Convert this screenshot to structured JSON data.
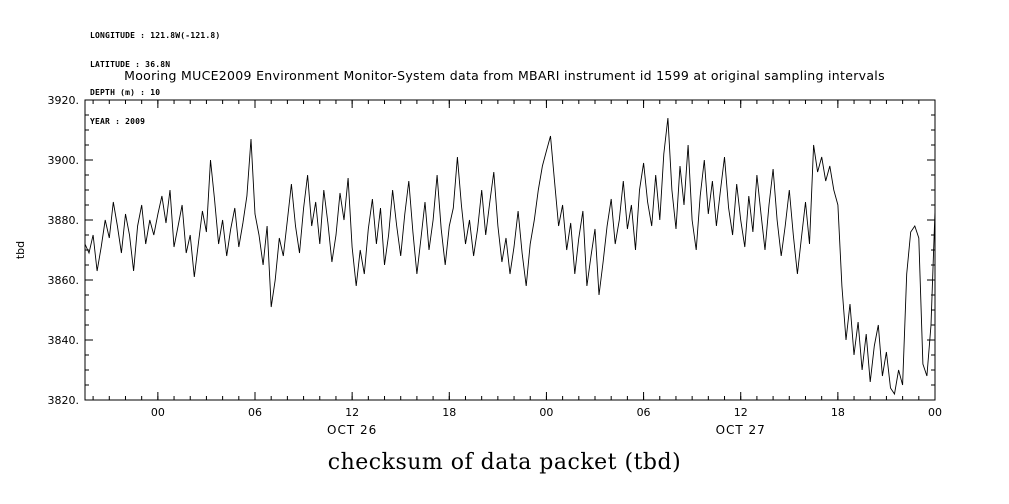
{
  "meta": {
    "lines": [
      "LONGITUDE : 121.8W(-121.8)",
      "LATITUDE : 36.8N",
      "DEPTH (m) : 10",
      "YEAR : 2009"
    ]
  },
  "title": "Mooring MUCE2009 Environment Monitor-System data from MBARI instrument id 1599 at original sampling intervals",
  "caption": "checksum of data packet (tbd)",
  "colors": {
    "foreground": "#000000",
    "background": "#ffffff"
  },
  "chart_data": {
    "type": "line",
    "title": "Mooring MUCE2009 Environment Monitor-System data from MBARI instrument id 1599 at original sampling intervals",
    "xlabel": "",
    "ylabel": "tbd",
    "legend": "none",
    "grid": false,
    "color": "#000000",
    "ylim": [
      3820,
      3920
    ],
    "xlim": [
      -4.5,
      48
    ],
    "ytick_values": [
      3820,
      3840,
      3860,
      3880,
      3900,
      3920
    ],
    "ytick_labels": [
      "3820.",
      "3840.",
      "3860.",
      "3880.",
      "3900.",
      "3920."
    ],
    "y_minor_step": 5,
    "xtick_values": [
      0,
      6,
      12,
      18,
      24,
      30,
      36,
      42,
      48
    ],
    "xtick_labels": [
      "00",
      "06",
      "12",
      "18",
      "00",
      "06",
      "12",
      "18",
      "00"
    ],
    "x_minor_step": 1,
    "date_labels": [
      {
        "label": "OCT 26",
        "x": 12
      },
      {
        "label": "OCT 27",
        "x": 36
      }
    ],
    "x_unit": "hours from 2009-10-26 00:00",
    "x_start": -4.5,
    "x_step": 0.25,
    "values": [
      3872,
      3869,
      3875,
      3863,
      3871,
      3880,
      3874,
      3886,
      3878,
      3869,
      3882,
      3875,
      3863,
      3878,
      3885,
      3872,
      3880,
      3875,
      3882,
      3888,
      3879,
      3890,
      3871,
      3878,
      3885,
      3869,
      3875,
      3861,
      3872,
      3883,
      3876,
      3900,
      3887,
      3872,
      3880,
      3868,
      3877,
      3884,
      3871,
      3879,
      3888,
      3907,
      3882,
      3875,
      3865,
      3878,
      3851,
      3860,
      3874,
      3868,
      3880,
      3892,
      3878,
      3869,
      3884,
      3895,
      3878,
      3886,
      3872,
      3890,
      3879,
      3866,
      3875,
      3889,
      3880,
      3894,
      3871,
      3858,
      3870,
      3862,
      3877,
      3887,
      3872,
      3884,
      3865,
      3875,
      3890,
      3878,
      3868,
      3882,
      3893,
      3876,
      3862,
      3874,
      3886,
      3870,
      3880,
      3895,
      3877,
      3865,
      3878,
      3884,
      3901,
      3885,
      3872,
      3880,
      3868,
      3877,
      3890,
      3875,
      3886,
      3896,
      3878,
      3866,
      3874,
      3862,
      3871,
      3883,
      3869,
      3858,
      3872,
      3880,
      3890,
      3898,
      3903,
      3908,
      3893,
      3878,
      3885,
      3870,
      3879,
      3862,
      3874,
      3883,
      3858,
      3868,
      3877,
      3855,
      3866,
      3878,
      3887,
      3872,
      3880,
      3893,
      3877,
      3885,
      3870,
      3890,
      3899,
      3886,
      3878,
      3895,
      3880,
      3902,
      3914,
      3890,
      3877,
      3898,
      3885,
      3905,
      3880,
      3870,
      3888,
      3900,
      3882,
      3893,
      3878,
      3890,
      3901,
      3884,
      3875,
      3892,
      3880,
      3871,
      3888,
      3876,
      3895,
      3882,
      3870,
      3885,
      3897,
      3880,
      3868,
      3878,
      3890,
      3875,
      3862,
      3874,
      3886,
      3872,
      3905,
      3896,
      3901,
      3893,
      3898,
      3890,
      3885,
      3858,
      3840,
      3852,
      3835,
      3846,
      3830,
      3842,
      3826,
      3838,
      3845,
      3828,
      3836,
      3824,
      3822,
      3830,
      3825,
      3862,
      3876,
      3878,
      3874,
      3832,
      3828,
      3845,
      3883
    ]
  }
}
